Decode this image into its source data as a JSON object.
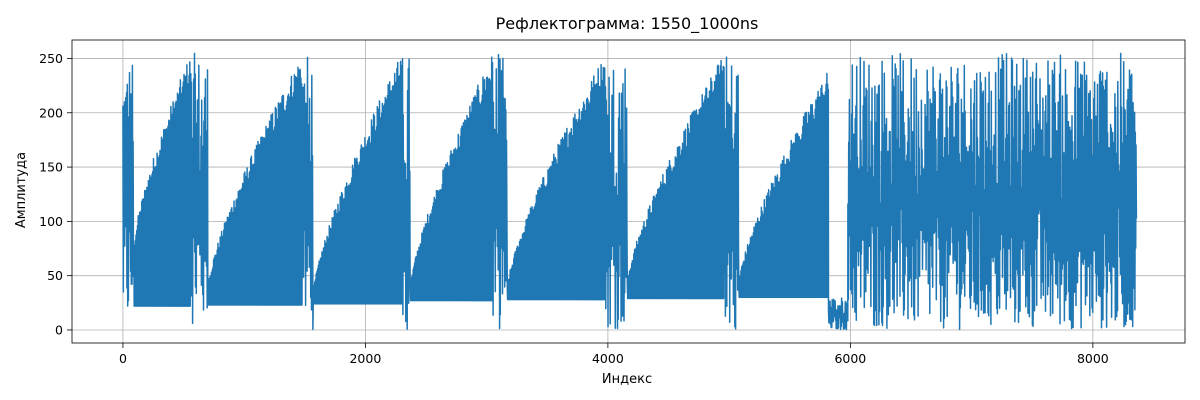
{
  "chart_data": {
    "type": "line",
    "title": "Рефлектограмма: 1550_1000ns",
    "xlabel": "Индекс",
    "ylabel": "Амплитуда",
    "xlim": [
      -420,
      8760
    ],
    "ylim": [
      -12,
      267
    ],
    "xticks": [
      0,
      2000,
      4000,
      6000,
      8000
    ],
    "xtick_labels": [
      "0",
      "2000",
      "4000",
      "6000",
      "8000"
    ],
    "yticks": [
      0,
      50,
      100,
      150,
      200,
      250
    ],
    "ytick_labels": [
      "0",
      "50",
      "100",
      "150",
      "200",
      "250"
    ],
    "grid": true,
    "series": [
      {
        "color": "#1f77b4",
        "segments": [
          {
            "x_start": 0,
            "x_end": 90,
            "kind": "noise",
            "lo": 0,
            "hi": 255
          },
          {
            "x_start": 90,
            "x_end": 560,
            "kind": "ramp",
            "baseline": 22,
            "peak_start": 80,
            "peak_end": 255
          },
          {
            "x_start": 560,
            "x_end": 700,
            "kind": "noise",
            "lo": 5,
            "hi": 255
          },
          {
            "x_start": 700,
            "x_end": 1480,
            "kind": "ramp",
            "baseline": 23,
            "peak_start": 40,
            "peak_end": 255
          },
          {
            "x_start": 1480,
            "x_end": 1570,
            "kind": "noise",
            "lo": 0,
            "hi": 255
          },
          {
            "x_start": 1570,
            "x_end": 2300,
            "kind": "ramp",
            "baseline": 24,
            "peak_start": 35,
            "peak_end": 255
          },
          {
            "x_start": 2300,
            "x_end": 2370,
            "kind": "noise",
            "lo": 0,
            "hi": 255
          },
          {
            "x_start": 2370,
            "x_end": 3050,
            "kind": "ramp",
            "baseline": 27,
            "peak_start": 40,
            "peak_end": 255
          },
          {
            "x_start": 3050,
            "x_end": 3170,
            "kind": "noise",
            "lo": 0,
            "hi": 255
          },
          {
            "x_start": 3170,
            "x_end": 3980,
            "kind": "ramp",
            "baseline": 28,
            "peak_start": 40,
            "peak_end": 255
          },
          {
            "x_start": 3980,
            "x_end": 4160,
            "kind": "noise",
            "lo": 0,
            "hi": 255
          },
          {
            "x_start": 4160,
            "x_end": 4960,
            "kind": "ramp",
            "baseline": 29,
            "peak_start": 45,
            "peak_end": 255
          },
          {
            "x_start": 4960,
            "x_end": 5080,
            "kind": "noise",
            "lo": 0,
            "hi": 255
          },
          {
            "x_start": 5080,
            "x_end": 5820,
            "kind": "ramp",
            "baseline": 30,
            "peak_start": 45,
            "peak_end": 240
          },
          {
            "x_start": 5820,
            "x_end": 5980,
            "kind": "noise",
            "lo": 0,
            "hi": 30
          },
          {
            "x_start": 5980,
            "x_end": 8360,
            "kind": "noise",
            "lo": 0,
            "hi": 255
          }
        ]
      }
    ]
  }
}
